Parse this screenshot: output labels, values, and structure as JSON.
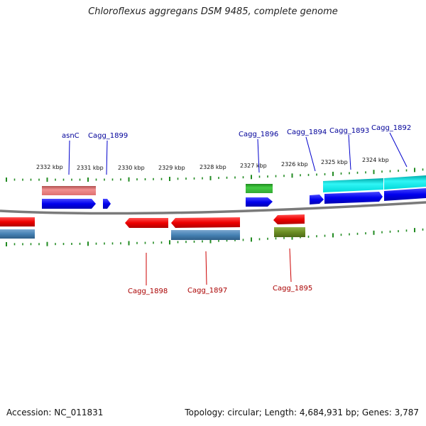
{
  "title": "Chloroflexus aggregans DSM 9485, complete genome",
  "footer": {
    "accession": "Accession: NC_011831",
    "summary": "Topology: circular; Length: 4,684,931 bp; Genes: 3,787"
  },
  "ticks": [
    "2332 kbp",
    "2331 kbp",
    "2330 kbp",
    "2329 kbp",
    "2328 kbp",
    "2327 kbp",
    "2326 kbp",
    "2325 kbp",
    "2324 kbp"
  ],
  "genes_top": [
    "asnC",
    "Cagg_1899",
    "Cagg_1896",
    "Cagg_1894",
    "Cagg_1893",
    "Cagg_1892"
  ],
  "genes_bottom": [
    "Cagg_1898",
    "Cagg_1897",
    "Cagg_1895"
  ],
  "colors": {
    "forward_cds": "#0000ee",
    "reverse_cds": "#ee0000",
    "forward_label": "#000099",
    "reverse_label": "#aa0000",
    "backbone": "#888888",
    "ticks": "#228b22",
    "pink_feature": "#e88080",
    "green_feature": "#3cb83c",
    "cyan_feature": "#00e5e5",
    "steel_feature": "#4682b4",
    "olive_feature": "#6b8e23"
  }
}
